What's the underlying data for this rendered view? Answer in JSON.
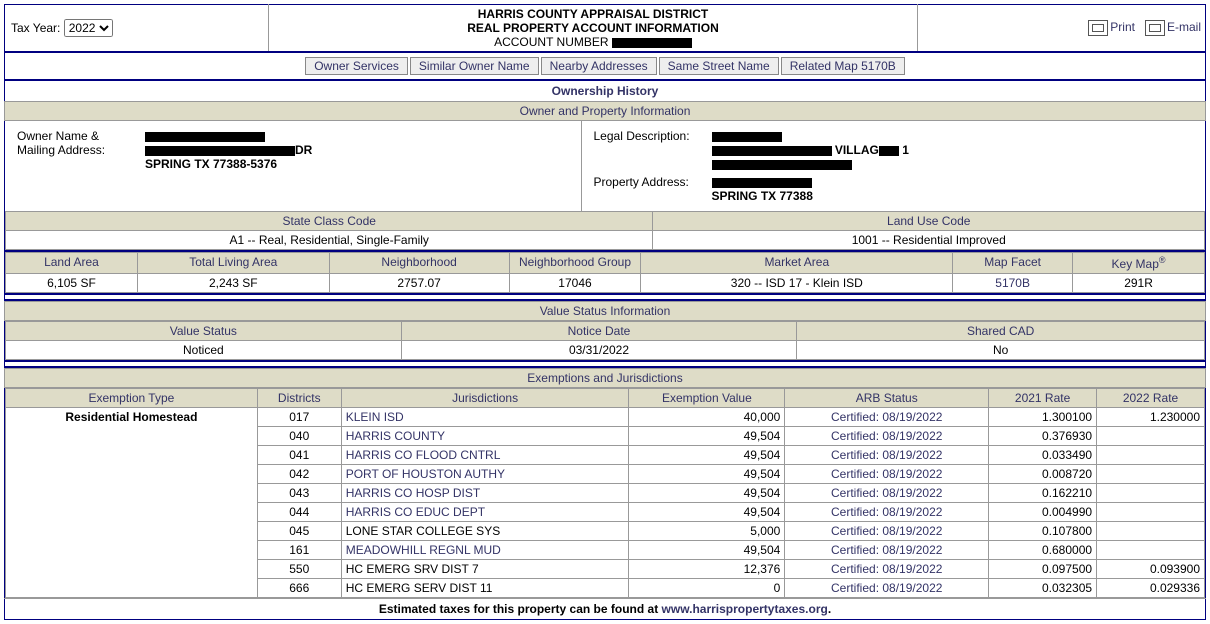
{
  "colors": {
    "navy": "#000080",
    "headerBg": "#dedcc7",
    "linkColor": "#333366",
    "background": "#ffffff"
  },
  "topbar": {
    "taxYearLabel": "Tax Year:",
    "taxYearSelected": "2022",
    "titleLine1": "HARRIS COUNTY APPRAISAL DISTRICT",
    "titleLine2": "REAL PROPERTY ACCOUNT INFORMATION",
    "titleLine3Prefix": "ACCOUNT NUMBER",
    "printLabel": "Print",
    "emailLabel": "E-mail"
  },
  "tabs": [
    "Owner Services",
    "Similar Owner Name",
    "Nearby Addresses",
    "Same Street Name",
    "Related Map 5170B"
  ],
  "ownershipHistoryLabel": "Ownership History",
  "ownerInfoHeader": "Owner and Property Information",
  "owner": {
    "nameLabel": "Owner Name &",
    "mailLabel": "Mailing Address:",
    "mailCity": "SPRING TX 77388-5376",
    "legalLabel": "Legal Description:",
    "legalLine2Suffix": "1",
    "propAddrLabel": "Property Address:",
    "propCity": "SPRING TX 77388"
  },
  "classCode": {
    "stateLabel": "State Class Code",
    "stateValue": "A1 -- Real, Residential, Single-Family",
    "landUseLabel": "Land Use Code",
    "landUseValue": "1001 -- Residential Improved"
  },
  "areaHeaders": {
    "landArea": "Land Area",
    "livingArea": "Total Living Area",
    "neighborhood": "Neighborhood",
    "neighborhoodGroup": "Neighborhood Group",
    "marketArea": "Market Area",
    "mapFacet": "Map Facet",
    "keyMap": "Key Map"
  },
  "areaValues": {
    "landArea": "6,105 SF",
    "livingArea": "2,243 SF",
    "neighborhood": "2757.07",
    "neighborhoodGroup": "17046",
    "marketArea": "320 -- ISD 17 - Klein ISD",
    "mapFacet": "5170B",
    "keyMap": "291R"
  },
  "valueStatus": {
    "header": "Value Status Information",
    "col1": "Value Status",
    "col2": "Notice Date",
    "col3": "Shared CAD",
    "val1": "Noticed",
    "val2": "03/31/2022",
    "val3": "No"
  },
  "exemptions": {
    "header": "Exemptions and Jurisdictions",
    "columns": {
      "type": "Exemption Type",
      "districts": "Districts",
      "jurisdictions": "Jurisdictions",
      "exemptionValue": "Exemption Value",
      "arb": "ARB Status",
      "rate2021": "2021 Rate",
      "rate2022": "2022 Rate"
    },
    "typeValue": "Residential Homestead",
    "rows": [
      {
        "dist": "017",
        "jur": "KLEIN ISD",
        "jurLink": true,
        "val": "40,000",
        "arb": "Certified: 08/19/2022",
        "r21": "1.300100",
        "r22": "1.230000"
      },
      {
        "dist": "040",
        "jur": "HARRIS COUNTY",
        "jurLink": true,
        "val": "49,504",
        "arb": "Certified: 08/19/2022",
        "r21": "0.376930",
        "r22": ""
      },
      {
        "dist": "041",
        "jur": "HARRIS CO FLOOD CNTRL",
        "jurLink": true,
        "val": "49,504",
        "arb": "Certified: 08/19/2022",
        "r21": "0.033490",
        "r22": ""
      },
      {
        "dist": "042",
        "jur": "PORT OF HOUSTON AUTHY",
        "jurLink": true,
        "val": "49,504",
        "arb": "Certified: 08/19/2022",
        "r21": "0.008720",
        "r22": ""
      },
      {
        "dist": "043",
        "jur": "HARRIS CO HOSP DIST",
        "jurLink": true,
        "val": "49,504",
        "arb": "Certified: 08/19/2022",
        "r21": "0.162210",
        "r22": ""
      },
      {
        "dist": "044",
        "jur": "HARRIS CO EDUC DEPT",
        "jurLink": true,
        "val": "49,504",
        "arb": "Certified: 08/19/2022",
        "r21": "0.004990",
        "r22": ""
      },
      {
        "dist": "045",
        "jur": "LONE STAR COLLEGE SYS",
        "jurLink": false,
        "val": "5,000",
        "arb": "Certified: 08/19/2022",
        "r21": "0.107800",
        "r22": ""
      },
      {
        "dist": "161",
        "jur": "MEADOWHILL REGNL MUD",
        "jurLink": true,
        "val": "49,504",
        "arb": "Certified: 08/19/2022",
        "r21": "0.680000",
        "r22": ""
      },
      {
        "dist": "550",
        "jur": "HC EMERG SRV DIST 7",
        "jurLink": false,
        "val": "12,376",
        "arb": "Certified: 08/19/2022",
        "r21": "0.097500",
        "r22": "0.093900"
      },
      {
        "dist": "666",
        "jur": "HC EMERG SERV DIST 11",
        "jurLink": false,
        "val": "0",
        "arb": "Certified: 08/19/2022",
        "r21": "0.032305",
        "r22": "0.029336"
      }
    ]
  },
  "footer": {
    "prefix": "Estimated taxes for this property can be found at ",
    "linkText": "www.harrispropertytaxes.org",
    "suffix": "."
  }
}
